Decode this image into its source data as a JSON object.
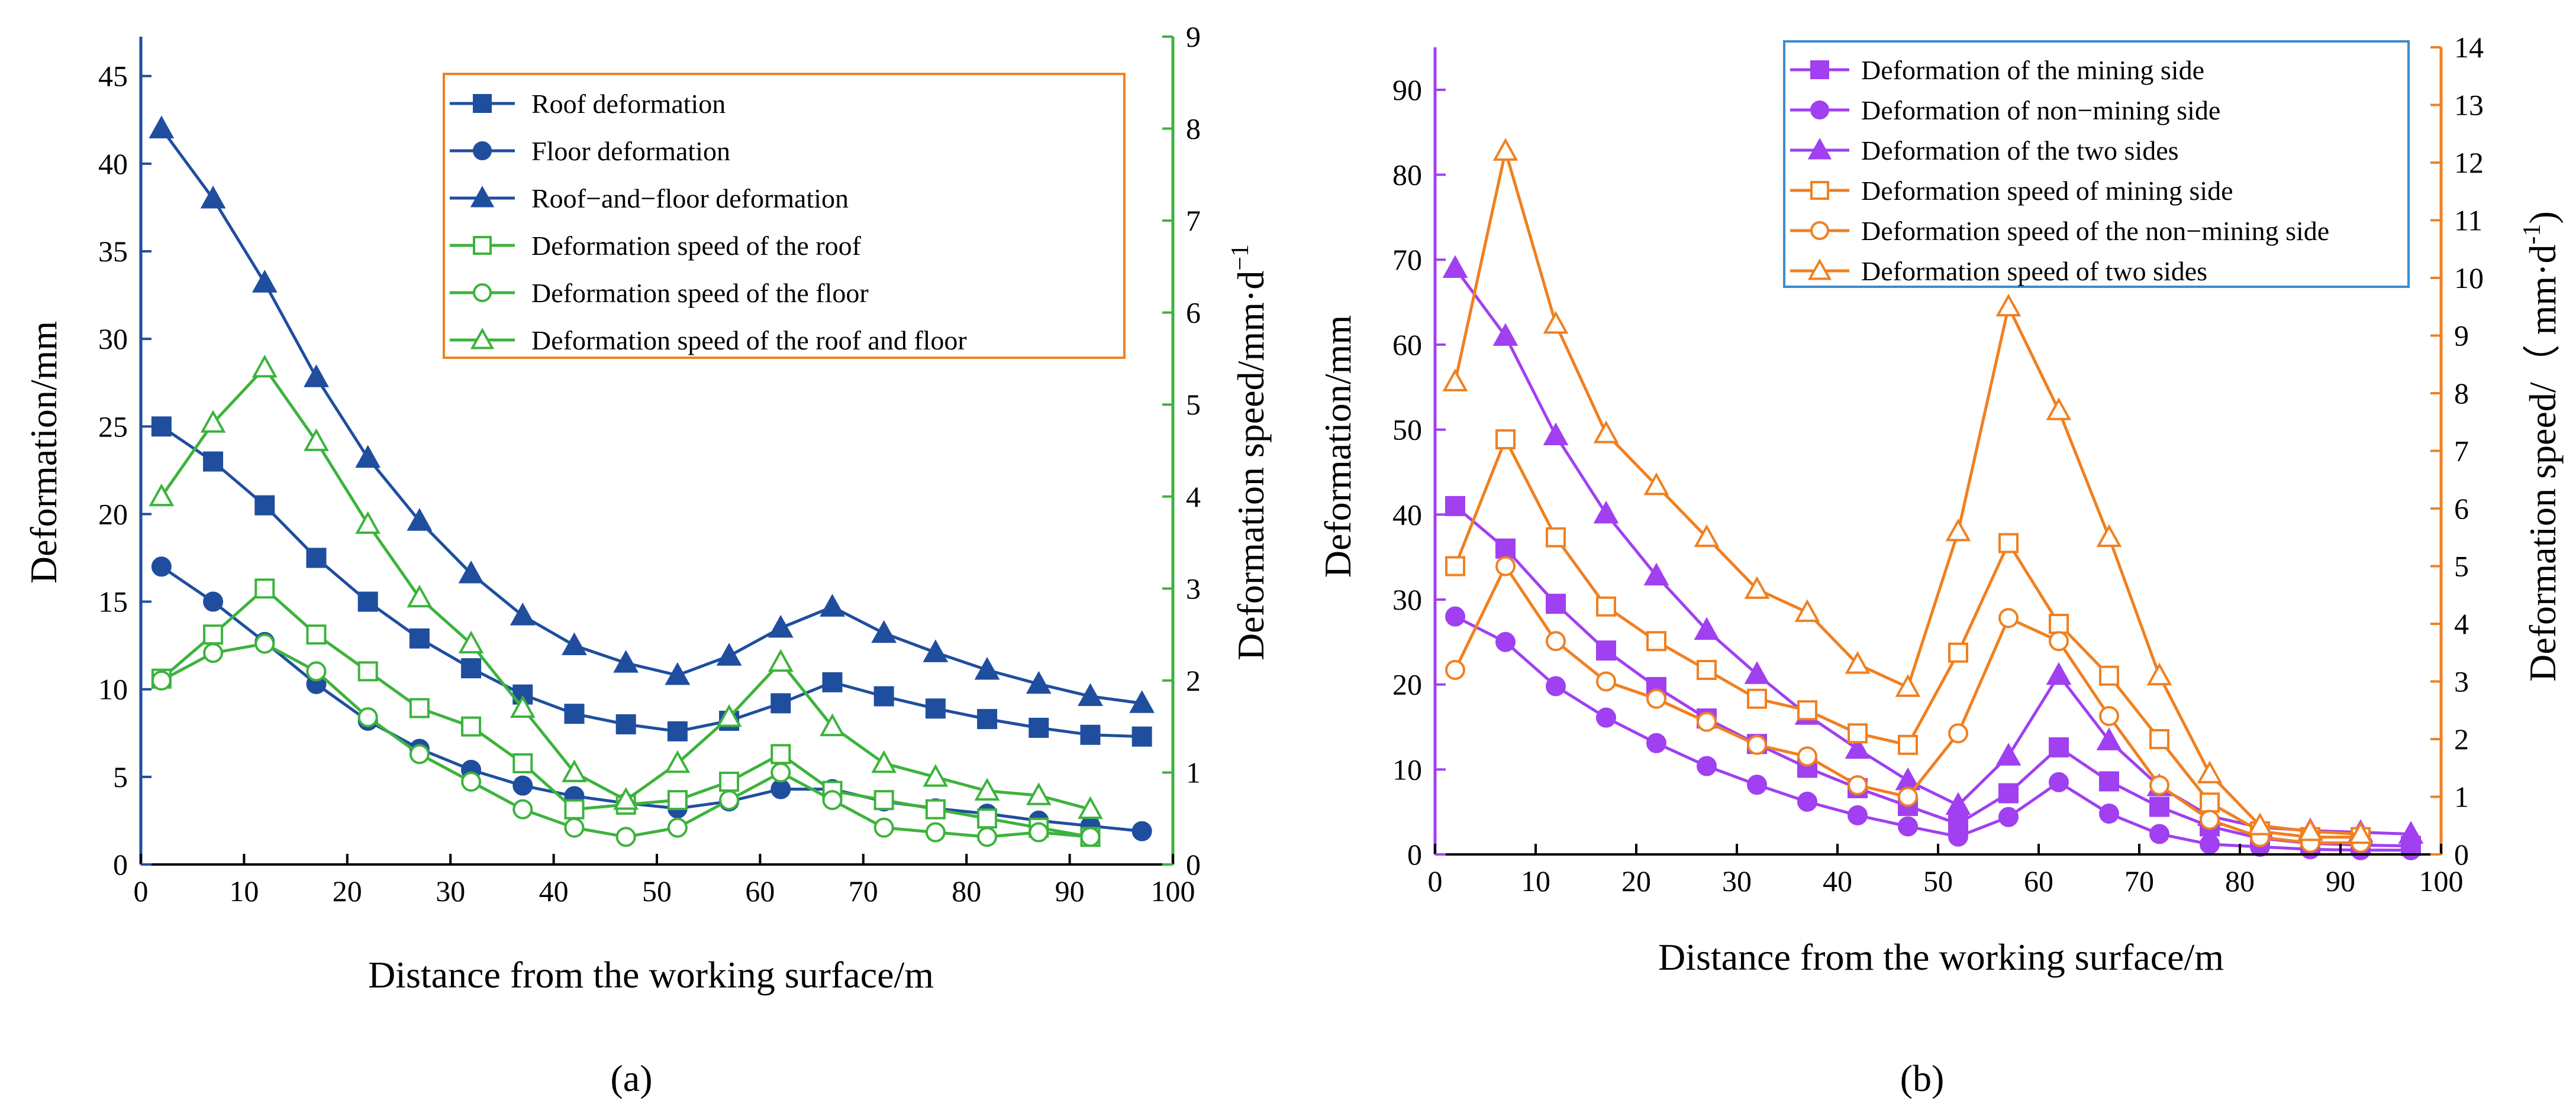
{
  "colors": {
    "navy": "#1f4e9e",
    "green": "#3cb33c",
    "purple": "#a040f0",
    "orange": "#f08020",
    "legend_border_a": "#f08020",
    "legend_border_b": "#3c8ccd"
  },
  "chart_data": [
    {
      "type": "line",
      "panel_label": "(a)",
      "xlabel": "Distance from the working surface/m",
      "ylabel_left": "Deformation/mm",
      "ylabel_right": "Deformation speed/mm·d",
      "ylabel_right_sup": "−1",
      "xlim": [
        0,
        100
      ],
      "ylim_left": [
        0,
        47.25
      ],
      "ylim_right": [
        0,
        9
      ],
      "xticks": [
        0,
        10,
        20,
        30,
        40,
        50,
        60,
        70,
        80,
        90,
        100
      ],
      "yticks_left": [
        0,
        5,
        10,
        15,
        20,
        25,
        30,
        35,
        40,
        45
      ],
      "yticks_right": [
        0,
        1,
        2,
        3,
        4,
        5,
        6,
        7,
        8,
        9
      ],
      "legend_position": "top-right",
      "series": [
        {
          "name": "Roof deformation",
          "axis": "left",
          "color": "navy",
          "marker": "square",
          "filled": true,
          "x": [
            2,
            7,
            12,
            17,
            22,
            27,
            32,
            37,
            42,
            47,
            52,
            57,
            62,
            67,
            72,
            77,
            82,
            87,
            92,
            97
          ],
          "values": [
            25,
            23,
            20.5,
            17.5,
            15,
            12.9,
            11.2,
            9.7,
            8.6,
            8,
            7.6,
            8.2,
            9.2,
            10.4,
            9.6,
            8.9,
            8.3,
            7.8,
            7.4,
            7.3
          ]
        },
        {
          "name": "Floor deformation",
          "axis": "left",
          "color": "navy",
          "marker": "circle",
          "filled": true,
          "x": [
            2,
            7,
            12,
            17,
            22,
            27,
            32,
            37,
            42,
            47,
            52,
            57,
            62,
            67,
            72,
            77,
            82,
            87,
            92,
            97
          ],
          "values": [
            17,
            15,
            12.7,
            10.3,
            8.2,
            6.6,
            5.4,
            4.5,
            3.9,
            3.5,
            3.2,
            3.6,
            4.3,
            4.3,
            3.6,
            3.2,
            2.9,
            2.5,
            2.2,
            1.9
          ]
        },
        {
          "name": "Roof−and−floor deformation",
          "axis": "left",
          "color": "navy",
          "marker": "triangle",
          "filled": true,
          "x": [
            2,
            7,
            12,
            17,
            22,
            27,
            32,
            37,
            42,
            47,
            52,
            57,
            62,
            67,
            72,
            77,
            82,
            87,
            92,
            97
          ],
          "values": [
            42,
            38,
            33.2,
            27.8,
            23.2,
            19.6,
            16.6,
            14.2,
            12.5,
            11.5,
            10.8,
            11.9,
            13.5,
            14.7,
            13.2,
            12.1,
            11.1,
            10.3,
            9.6,
            9.2
          ]
        },
        {
          "name": "Deformation speed of the roof",
          "axis": "right",
          "color": "green",
          "marker": "square",
          "filled": false,
          "x": [
            2,
            7,
            12,
            17,
            22,
            27,
            32,
            37,
            42,
            47,
            52,
            57,
            62,
            67,
            72,
            77,
            82,
            87,
            92
          ],
          "values": [
            2.02,
            2.5,
            3.0,
            2.5,
            2.1,
            1.7,
            1.5,
            1.1,
            0.6,
            0.65,
            0.7,
            0.9,
            1.2,
            0.8,
            0.7,
            0.6,
            0.5,
            0.4,
            0.3
          ]
        },
        {
          "name": "Deformation speed of the floor",
          "axis": "right",
          "color": "green",
          "marker": "circle",
          "filled": false,
          "x": [
            2,
            7,
            12,
            17,
            22,
            27,
            32,
            37,
            42,
            47,
            52,
            57,
            62,
            67,
            72,
            77,
            82,
            87,
            92
          ],
          "values": [
            2.0,
            2.3,
            2.4,
            2.1,
            1.6,
            1.2,
            0.9,
            0.6,
            0.4,
            0.3,
            0.4,
            0.7,
            1.0,
            0.7,
            0.4,
            0.35,
            0.3,
            0.35,
            0.3
          ]
        },
        {
          "name": "Deformation speed of the roof and floor",
          "axis": "right",
          "color": "green",
          "marker": "triangle",
          "filled": false,
          "x": [
            2,
            7,
            12,
            17,
            22,
            27,
            32,
            37,
            42,
            47,
            52,
            57,
            62,
            67,
            72,
            77,
            82,
            87,
            92
          ],
          "values": [
            4.0,
            4.8,
            5.4,
            4.6,
            3.7,
            2.9,
            2.4,
            1.7,
            1.0,
            0.7,
            1.1,
            1.6,
            2.2,
            1.5,
            1.1,
            0.95,
            0.8,
            0.75,
            0.6
          ]
        }
      ]
    },
    {
      "type": "line",
      "panel_label": "(b)",
      "xlabel": "Distance from the working surface/m",
      "ylabel_left": "Deformation/mm",
      "ylabel_right": "Deformation speed/（ mm·d",
      "ylabel_right_sup": "-1",
      "ylabel_right_suffix": ")",
      "xlim": [
        0,
        100
      ],
      "ylim_left": [
        0,
        95
      ],
      "ylim_right": [
        0,
        14
      ],
      "xticks": [
        0,
        10,
        20,
        30,
        40,
        50,
        60,
        70,
        80,
        90,
        100
      ],
      "yticks_left": [
        0,
        10,
        20,
        30,
        40,
        50,
        60,
        70,
        80,
        90
      ],
      "yticks_right": [
        0,
        1,
        2,
        3,
        4,
        5,
        6,
        7,
        8,
        9,
        10,
        11,
        12,
        13,
        14
      ],
      "legend_position": "top-right",
      "series": [
        {
          "name": "Deformation of the mining side",
          "axis": "left",
          "color": "purple",
          "marker": "square",
          "filled": true,
          "x": [
            2,
            7,
            12,
            17,
            22,
            27,
            32,
            37,
            42,
            47,
            52,
            57,
            62,
            67,
            72,
            77,
            82,
            87,
            92,
            97
          ],
          "values": [
            41,
            36,
            29.5,
            24,
            19.7,
            16,
            13,
            10.2,
            7.8,
            5.7,
            3.6,
            7.2,
            12.6,
            8.6,
            5.6,
            3.3,
            1.9,
            1.3,
            1.1,
            1.0
          ]
        },
        {
          "name": "Deformation of non−mining side",
          "axis": "left",
          "color": "purple",
          "marker": "circle",
          "filled": true,
          "x": [
            2,
            7,
            12,
            17,
            22,
            27,
            32,
            37,
            42,
            47,
            52,
            57,
            62,
            67,
            72,
            77,
            82,
            87,
            92,
            97
          ],
          "values": [
            28,
            25,
            19.8,
            16.1,
            13.1,
            10.4,
            8.2,
            6.2,
            4.6,
            3.3,
            2.1,
            4.4,
            8.5,
            4.8,
            2.4,
            1.2,
            0.9,
            0.6,
            0.5,
            0.5
          ]
        },
        {
          "name": "Deformation of the two sides",
          "axis": "left",
          "color": "purple",
          "marker": "triangle",
          "filled": true,
          "x": [
            2,
            7,
            12,
            17,
            22,
            27,
            32,
            37,
            42,
            47,
            52,
            57,
            62,
            67,
            72,
            77,
            82,
            87,
            92,
            97
          ],
          "values": [
            69,
            61,
            49.3,
            40.1,
            32.8,
            26.4,
            21.2,
            16.4,
            12.4,
            8.7,
            5.8,
            11.6,
            21.1,
            13.4,
            8.0,
            4.5,
            3.2,
            2.8,
            2.6,
            2.4
          ]
        },
        {
          "name": "Deformation speed of mining side",
          "axis": "right",
          "color": "orange",
          "marker": "square",
          "filled": false,
          "x": [
            2,
            7,
            12,
            17,
            22,
            27,
            32,
            37,
            42,
            47,
            52,
            57,
            62,
            67,
            72,
            77,
            82,
            87,
            92
          ],
          "values": [
            5.0,
            7.2,
            5.5,
            4.3,
            3.7,
            3.2,
            2.7,
            2.5,
            2.1,
            1.9,
            3.5,
            5.4,
            4.0,
            3.1,
            2.0,
            0.9,
            0.4,
            0.3,
            0.3
          ]
        },
        {
          "name": "Deformation speed of the non−mining side",
          "axis": "right",
          "color": "orange",
          "marker": "circle",
          "filled": false,
          "x": [
            2,
            7,
            12,
            17,
            22,
            27,
            32,
            37,
            42,
            47,
            52,
            57,
            62,
            67,
            72,
            77,
            82,
            87,
            92
          ],
          "values": [
            3.2,
            5.0,
            3.7,
            3.0,
            2.7,
            2.3,
            1.9,
            1.7,
            1.2,
            1.0,
            2.1,
            4.1,
            3.7,
            2.4,
            1.2,
            0.6,
            0.3,
            0.2,
            0.2
          ]
        },
        {
          "name": "Deformation speed of two sides",
          "axis": "right",
          "color": "orange",
          "marker": "triangle",
          "filled": false,
          "x": [
            2,
            7,
            12,
            17,
            22,
            27,
            32,
            37,
            42,
            47,
            52,
            57,
            62,
            67,
            72,
            77,
            82,
            87,
            92
          ],
          "values": [
            8.2,
            12.2,
            9.2,
            7.3,
            6.4,
            5.5,
            4.6,
            4.2,
            3.3,
            2.9,
            5.6,
            9.5,
            7.7,
            5.5,
            3.1,
            1.4,
            0.5,
            0.4,
            0.35
          ]
        }
      ]
    }
  ]
}
